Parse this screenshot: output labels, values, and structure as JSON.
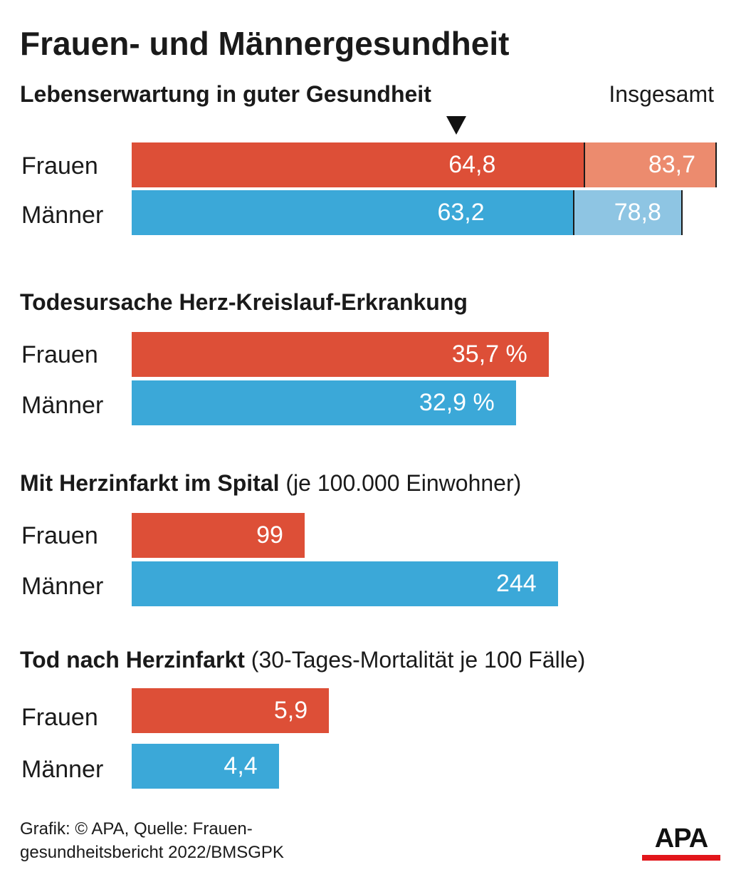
{
  "title": "Frauen- und Männergesundheit",
  "colors": {
    "frauen": "#dd4f37",
    "frauen_total": "#ec8b6e",
    "maenner": "#3ba8d8",
    "maenner_total": "#8ec5e3",
    "logo_accent": "#e2161b"
  },
  "chart_data": [
    {
      "type": "bar",
      "title": "Lebenserwartung in guter Gesundheit",
      "subtitle": "",
      "total_label": "Insgesamt",
      "categories": [
        "Frauen",
        "Männer"
      ],
      "series": [
        {
          "name": "Lebenserwartung in guter Gesundheit",
          "values": [
            64.8,
            63.2
          ],
          "labels": [
            "64,8",
            "63,2"
          ]
        },
        {
          "name": "Insgesamt",
          "values": [
            83.7,
            78.8
          ],
          "labels": [
            "83,7",
            "78,8"
          ]
        }
      ],
      "xlim": [
        0,
        83.7
      ]
    },
    {
      "type": "bar",
      "title": "Todesursache Herz-Kreislauf-Erkrankung",
      "subtitle": "",
      "categories": [
        "Frauen",
        "Männer"
      ],
      "values": [
        35.7,
        32.9
      ],
      "labels": [
        "35,7 %",
        "32,9 %"
      ],
      "xlim": [
        0,
        50.1
      ]
    },
    {
      "type": "bar",
      "title": "Mit Herzinfarkt im Spital",
      "subtitle": "(je 100.000 Einwohner)",
      "categories": [
        "Frauen",
        "Männer"
      ],
      "values": [
        99,
        244
      ],
      "labels": [
        "99",
        "244"
      ],
      "xlim": [
        0,
        335
      ]
    },
    {
      "type": "bar",
      "title": "Tod nach Herzinfarkt",
      "subtitle": "(30-Tages-Mortalität je 100 Fälle)",
      "categories": [
        "Frauen",
        "Männer"
      ],
      "values": [
        5.9,
        4.4
      ],
      "labels": [
        "5,9",
        "4,4"
      ],
      "xlim": [
        0,
        17.5
      ]
    }
  ],
  "footer": {
    "source": "Grafik: © APA, Quelle: Frauen-gesundheitsbericht 2022/BMSGPK",
    "logo": "APA"
  }
}
